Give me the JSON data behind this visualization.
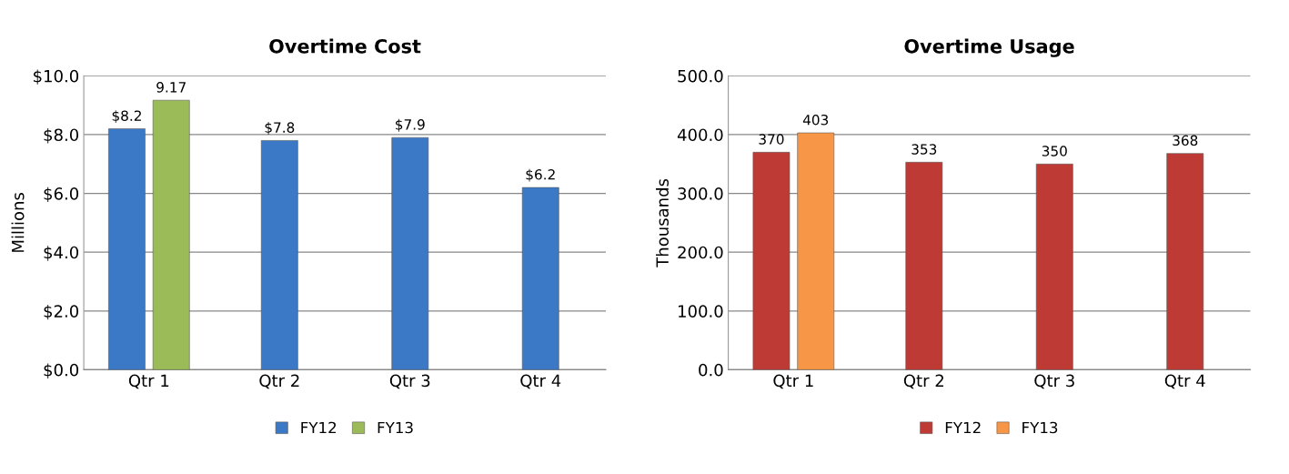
{
  "chart_data": [
    {
      "type": "bar",
      "title": "Overtime Cost",
      "ylabel": "Millions",
      "categories": [
        "Qtr 1",
        "Qtr 2",
        "Qtr 3",
        "Qtr 4"
      ],
      "series": [
        {
          "name": "FY12",
          "color": "#3b78c6",
          "values": [
            8.2,
            7.8,
            7.9,
            6.2
          ],
          "value_labels": [
            "$8.2",
            "$7.8",
            "$7.9",
            "$6.2"
          ]
        },
        {
          "name": "FY13",
          "color": "#9bbb59",
          "values": [
            9.17,
            null,
            null,
            null
          ],
          "value_labels": [
            "9.17",
            null,
            null,
            null
          ]
        }
      ],
      "ylim": [
        0,
        10
      ],
      "yticks": [
        {
          "value": 0,
          "label": "$0.0"
        },
        {
          "value": 2,
          "label": "$2.0"
        },
        {
          "value": 4,
          "label": "$4.0"
        },
        {
          "value": 6,
          "label": "$6.0"
        },
        {
          "value": 8,
          "label": "$8.0"
        },
        {
          "value": 10,
          "label": "$10.0"
        }
      ],
      "grid": "y",
      "legend": "bottom"
    },
    {
      "type": "bar",
      "title": "Overtime Usage",
      "ylabel": "Thousands",
      "categories": [
        "Qtr 1",
        "Qtr 2",
        "Qtr 3",
        "Qtr 4"
      ],
      "series": [
        {
          "name": "FY12",
          "color": "#be3a35",
          "values": [
            370,
            353,
            350,
            368
          ]
        },
        {
          "name": "FY13",
          "color": "#f79646",
          "values": [
            403,
            null,
            null,
            null
          ]
        }
      ],
      "data_labels": true,
      "ylim": [
        0,
        500
      ],
      "yticks": [
        {
          "value": 0,
          "label": "0.0"
        },
        {
          "value": 100,
          "label": "100.0"
        },
        {
          "value": 200,
          "label": "200.0"
        },
        {
          "value": 300,
          "label": "300.0"
        },
        {
          "value": 400,
          "label": "400.0"
        },
        {
          "value": 500,
          "label": "500.0"
        }
      ],
      "grid": "y",
      "legend": "bottom"
    }
  ]
}
